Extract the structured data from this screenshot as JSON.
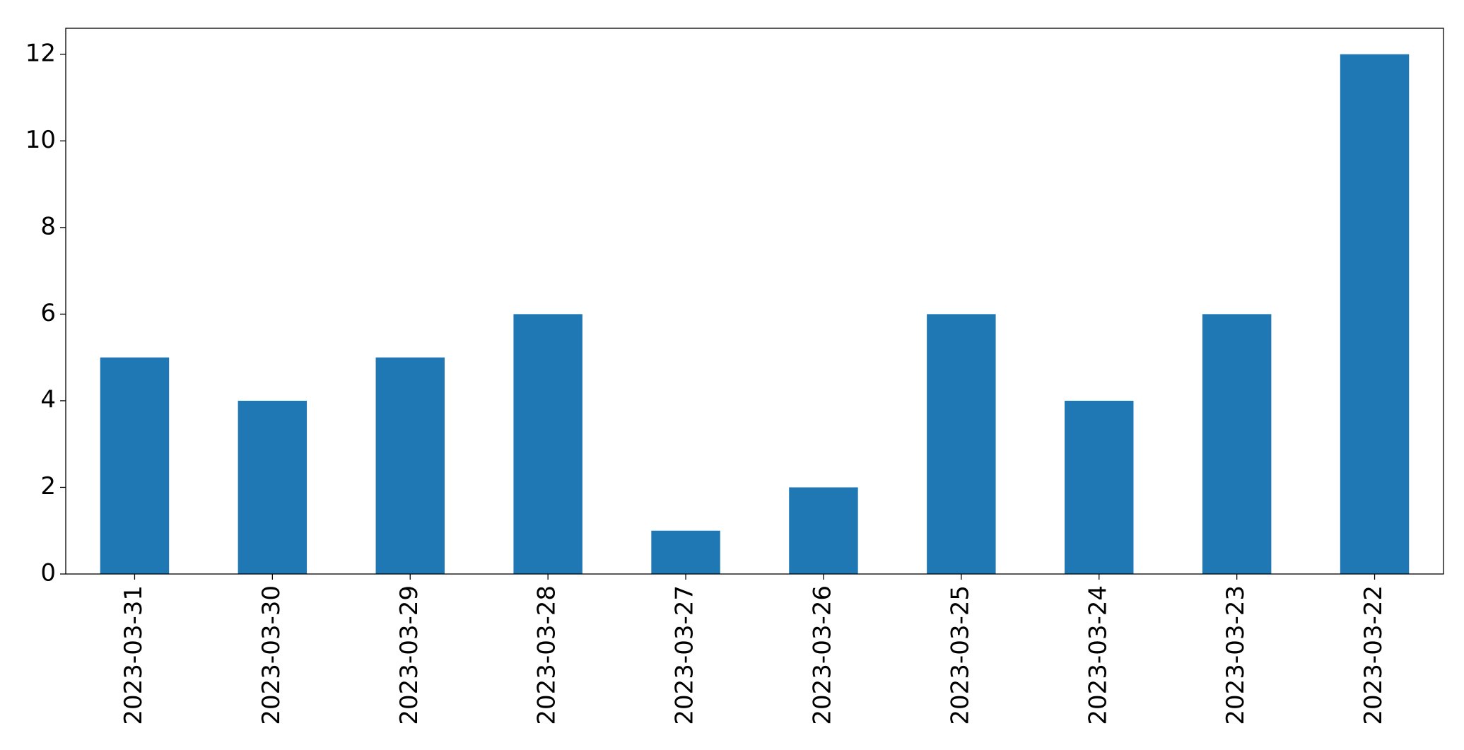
{
  "chart_data": {
    "type": "bar",
    "categories": [
      "2023-03-31",
      "2023-03-30",
      "2023-03-29",
      "2023-03-28",
      "2023-03-27",
      "2023-03-26",
      "2023-03-25",
      "2023-03-24",
      "2023-03-23",
      "2023-03-22"
    ],
    "values": [
      5,
      4,
      5,
      6,
      1,
      2,
      6,
      4,
      6,
      12
    ],
    "color": "#1f77b4",
    "ylim": [
      0,
      12.6
    ],
    "yticks": [
      0,
      2,
      4,
      6,
      8,
      10,
      12
    ],
    "grid": false
  }
}
